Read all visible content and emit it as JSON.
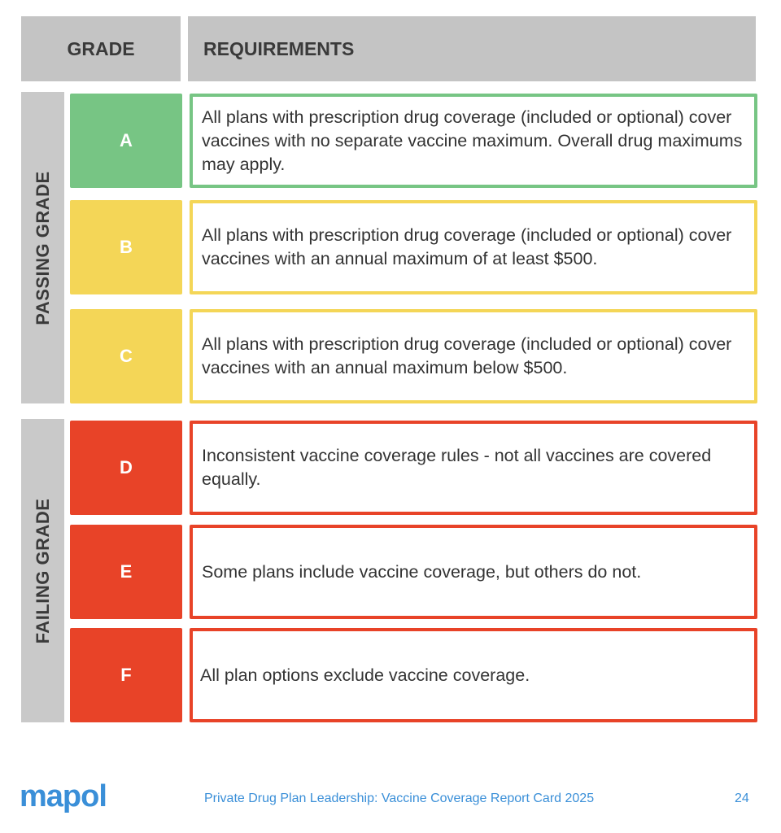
{
  "header": {
    "grade": "GRADE",
    "requirements": "REQUIREMENTS"
  },
  "groups": {
    "passing": "PASSING GRADE",
    "failing": "FAILING GRADE"
  },
  "colors": {
    "header": "#c4c4c4",
    "green": "#77c584",
    "yellow": "#f4d657",
    "red": "#e84328",
    "footer": "#3a8fd8"
  },
  "rows": [
    {
      "grade": "A",
      "text": "All plans with prescription drug coverage (included or optional) cover vaccines with no separate vaccine maximum. Overall drug maximums may apply."
    },
    {
      "grade": "B",
      "text": "All plans with prescription drug coverage (included or optional) cover vaccines with an annual maximum of at least $500."
    },
    {
      "grade": "C",
      "text": "All plans with prescription drug coverage (included or optional) cover vaccines with an annual maximum below $500."
    },
    {
      "grade": "D",
      "text": "Inconsistent vaccine coverage rules - not all vaccines are covered equally."
    },
    {
      "grade": "E",
      "text": "Some plans include vaccine coverage, but others do not."
    },
    {
      "grade": "F",
      "text": "All plan options exclude vaccine coverage."
    }
  ],
  "footer": {
    "logo": "mapol",
    "title": "Private Drug Plan Leadership: Vaccine Coverage Report Card 2025",
    "page": "24"
  }
}
